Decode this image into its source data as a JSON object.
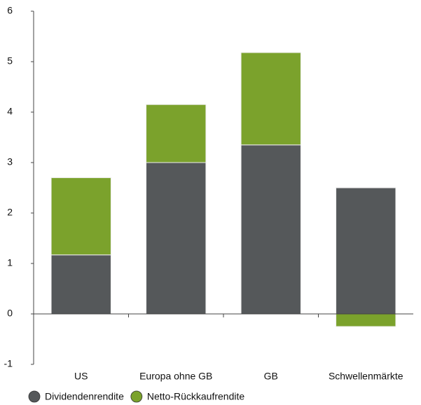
{
  "chart_data": {
    "type": "stacked_bar",
    "categories": [
      "US",
      "Europa ohne GB",
      "GB",
      "Schwellenmärkte"
    ],
    "series": [
      {
        "name": "Dividendenrendite",
        "color": "#55585a",
        "values": [
          1.17,
          3.0,
          3.35,
          2.5
        ]
      },
      {
        "name": "Netto-Rückkaufrendite",
        "color": "#7ba22c",
        "values": [
          1.53,
          1.15,
          1.83,
          -0.25
        ]
      }
    ],
    "ylim": [
      -1,
      6
    ],
    "yticks": [
      -1,
      0,
      1,
      2,
      3,
      4,
      5,
      6
    ],
    "grid": false
  }
}
